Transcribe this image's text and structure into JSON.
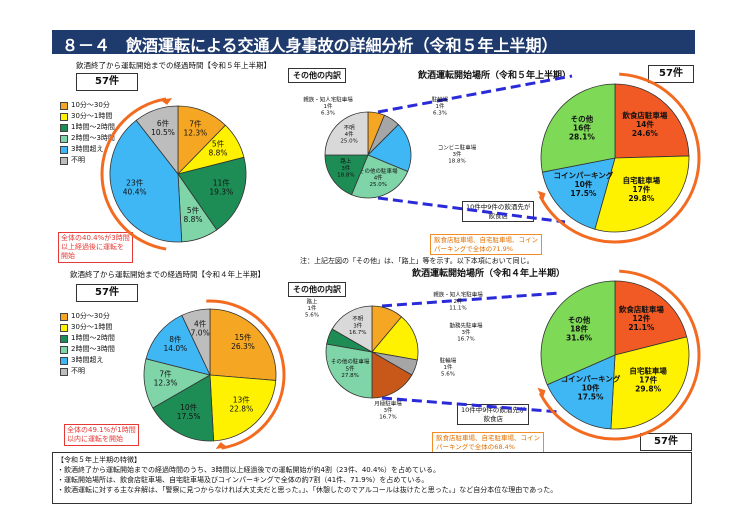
{
  "page": {
    "title": "８－４　飲酒運転による交通人身事故の詳細分析（令和５年上半期）"
  },
  "panels": {
    "tl": {
      "caption": "飲酒終了から運転開始までの経過時間【令和５年上半期】",
      "count": "57件",
      "note": [
        "全体の40.4%が3時間",
        "以上経過後に運転を",
        "開始"
      ]
    },
    "bl": {
      "caption": "飲酒終了から運転開始までの経過時間【令和４年上半期】",
      "count": "57件",
      "note": [
        "全体の49.1%が1時間",
        "以内に運転を開始"
      ]
    },
    "tr": {
      "other_label": "その他の内訳",
      "title": "飲酒運転開始場所（令和５年上半期）",
      "count": "57件",
      "bottom_note": [
        "10件中9件の飲酒先が",
        "飲食店"
      ],
      "orange_note": [
        "飲食店駐車場、自宅駐車場、コイン",
        "パーキングで全体の71.9%"
      ],
      "footnote": "注：上記左図の「その他」は、「路上」等を示す。以下本項において同じ。"
    },
    "br": {
      "other_label": "その他の内訳",
      "title": "飲酒運転開始場所（令和４年上半期）",
      "count": "57件",
      "bottom_note": [
        "10件中9件の飲酒先が",
        "飲食店"
      ],
      "orange_note": [
        "飲食店駐車場、自宅駐車場、コイン",
        "パーキングで全体の68.4%"
      ]
    }
  },
  "legend_time": {
    "items": [
      {
        "label": "10分～30分",
        "color": "#f5a623"
      },
      {
        "label": "30分～1時間",
        "color": "#fff200"
      },
      {
        "label": "1時間～2時間",
        "color": "#1e8c55"
      },
      {
        "label": "2時間～3時間",
        "color": "#7fd4a8"
      },
      {
        "label": "3時間超え",
        "color": "#3fb7f5"
      },
      {
        "label": "不明",
        "color": "#bdbdbd"
      }
    ]
  },
  "features": {
    "heading": "【令和５年上半期の特徴】",
    "lines": [
      "・飲酒終了から運転開始までの経過時間のうち、3時間以上経過後での運転開始が約4割（23件、40.4%）を占めている。",
      "・運転開始場所は、飲食店駐車場、自宅駐車場及びコインパーキングで全体の約7割（41件、71.9%）を占めている。",
      "・飲酒運転に対する主な弁解は、「警察に見つからなければ大丈夫だと思った。」、「休憩したのでアルコールは抜けたと思った。」など自分本位な理由であった。"
    ]
  },
  "chart_data": [
    {
      "type": "pie",
      "id": "time_r5",
      "title": "飲酒終了から運転開始までの経過時間【令和５年上半期】",
      "categories": [
        "10分～30分",
        "30分～1時間",
        "1時間～2時間",
        "2時間～3時間",
        "3時間超え",
        "不明"
      ],
      "values": [
        7,
        5,
        11,
        5,
        23,
        6
      ],
      "percent": [
        "12.3%",
        "8.8%",
        "19.3%",
        "8.8%",
        "40.4%",
        "10.5%"
      ],
      "colors": [
        "#f5a623",
        "#fff200",
        "#1e8c55",
        "#7fd4a8",
        "#3fb7f5",
        "#bdbdbd"
      ],
      "total": "57件"
    },
    {
      "type": "pie",
      "id": "time_r4",
      "title": "飲酒終了から運転開始までの経過時間【令和４年上半期】",
      "categories": [
        "10分～30分",
        "30分～1時間",
        "1時間～2時間",
        "2時間～3時間",
        "3時間超え",
        "不明"
      ],
      "values": [
        15,
        13,
        10,
        7,
        8,
        4
      ],
      "percent": [
        "26.3%",
        "22.8%",
        "17.5%",
        "12.3%",
        "14.0%",
        "7.0%"
      ],
      "colors": [
        "#f5a623",
        "#fff200",
        "#1e8c55",
        "#7fd4a8",
        "#3fb7f5",
        "#bdbdbd"
      ],
      "total": "57件"
    },
    {
      "type": "pie",
      "id": "place_r5",
      "title": "飲酒運転開始場所（令和５年上半期）",
      "categories": [
        "飲食店駐車場",
        "自宅駐車場",
        "コインパーキング",
        "その他"
      ],
      "values": [
        14,
        17,
        10,
        16
      ],
      "percent": [
        "24.6%",
        "29.8%",
        "17.5%",
        "28.1%"
      ],
      "colors": [
        "#f15a24",
        "#fff200",
        "#3fb7f5",
        "#7ed957"
      ],
      "total": "57件"
    },
    {
      "type": "pie",
      "id": "other_r5",
      "title": "その他の内訳",
      "categories": [
        "親族・知人宅駐車場",
        "駐輪場",
        "コンビニ駐車場",
        "その他の駐車場",
        "路上",
        "不明"
      ],
      "values": [
        1,
        1,
        3,
        4,
        3,
        4
      ],
      "percent": [
        "6.3%",
        "6.3%",
        "18.8%",
        "25.0%",
        "18.8%",
        "25.0%"
      ],
      "colors": [
        "#f5a623",
        "#a6a6a6",
        "#3fb7f5",
        "#7fd4a8",
        "#1e8c55",
        "#d9d9d9"
      ]
    },
    {
      "type": "pie",
      "id": "place_r4",
      "title": "飲酒運転開始場所（令和４年上半期）",
      "categories": [
        "飲食店駐車場",
        "自宅駐車場",
        "コインパーキング",
        "その他"
      ],
      "values": [
        12,
        17,
        10,
        18
      ],
      "percent": [
        "21.1%",
        "29.8%",
        "17.5%",
        "31.6%"
      ],
      "colors": [
        "#f15a24",
        "#fff200",
        "#3fb7f5",
        "#7ed957"
      ],
      "total": "57件"
    },
    {
      "type": "pie",
      "id": "other_r4",
      "title": "その他の内訳",
      "categories": [
        "親族・知人宅駐車場",
        "勤務先駐車場",
        "駐輪場",
        "月極駐車場",
        "その他の駐車場",
        "路上",
        "不明"
      ],
      "values": [
        2,
        3,
        1,
        3,
        5,
        1,
        3
      ],
      "percent": [
        "11.1%",
        "16.7%",
        "5.6%",
        "16.7%",
        "27.8%",
        "5.6%",
        "16.7%"
      ],
      "colors": [
        "#f5a623",
        "#fff200",
        "#a6a6a6",
        "#c8581a",
        "#7fd4a8",
        "#1e8c55",
        "#d9d9d9"
      ]
    }
  ]
}
